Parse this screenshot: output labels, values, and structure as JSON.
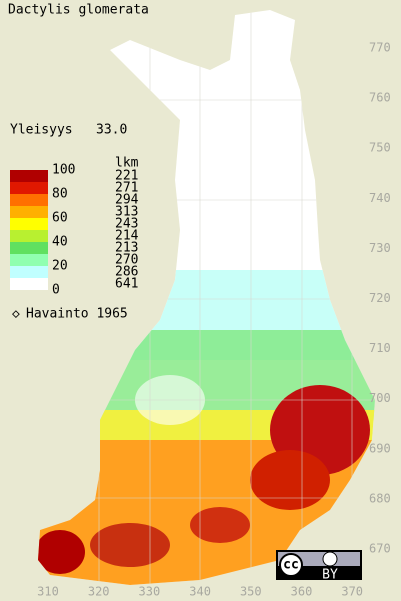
{
  "title": "Dactylis glomerata",
  "frequency": {
    "label": "Yleisyys",
    "value": "33.0"
  },
  "legend": {
    "scale_labels": [
      "100",
      "80",
      "60",
      "40",
      "20",
      "0"
    ],
    "unit": "lkm",
    "counts": [
      "221",
      "271",
      "294",
      "313",
      "243",
      "214",
      "213",
      "270",
      "286",
      "641"
    ],
    "colors": [
      "#b00000",
      "#e01800",
      "#ff7000",
      "#ffb000",
      "#ffff00",
      "#b8f030",
      "#60e060",
      "#90ffb0",
      "#c0ffff",
      "#ffffff"
    ]
  },
  "observation": "Havainto 1965",
  "y_axis_labels": [
    "770",
    "760",
    "750",
    "740",
    "730",
    "720",
    "710",
    "700",
    "690",
    "680",
    "670"
  ],
  "x_axis_labels": [
    "310",
    "320",
    "330",
    "340",
    "350",
    "360",
    "370"
  ],
  "license": {
    "cc": "cc",
    "by": "BY"
  }
}
